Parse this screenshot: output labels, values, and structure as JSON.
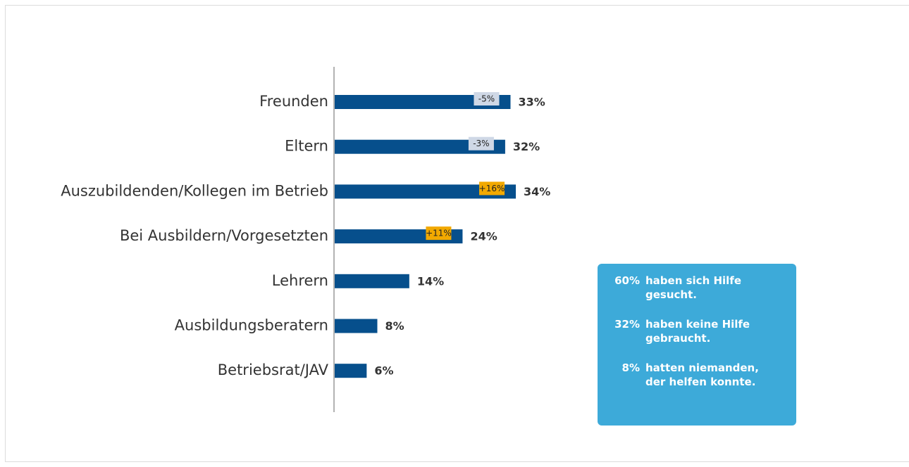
{
  "chart_data": {
    "type": "hbar",
    "categories": [
      "Freunden",
      "Eltern",
      "Auszubildenden/Kollegen im Betrieb",
      "Bei Ausbildern/Vorgesetzten",
      "Lehrern",
      "Ausbildungsberatern",
      "Betriebsrat/JAV"
    ],
    "values": [
      33,
      32,
      34,
      24,
      14,
      8,
      6
    ],
    "value_labels": [
      "33%",
      "32%",
      "34%",
      "24%",
      "14%",
      "8%",
      "6%"
    ],
    "color": "#064f8c",
    "xlim": [
      0,
      100
    ],
    "changes": [
      -5,
      -3,
      16,
      11,
      null,
      null,
      null
    ],
    "change_labels": [
      "-5%",
      "-3%",
      "+16%",
      "+11%",
      null,
      null,
      null
    ],
    "change_colors": {
      "negative": "#cfd8e6",
      "positive": "#f2a900"
    },
    "summary": [
      {
        "value": 60,
        "label": "60%",
        "text": "haben sich Hilfe gesucht."
      },
      {
        "value": 32,
        "label": "32%",
        "text": "haben keine Hilfe gebraucht."
      },
      {
        "value": 8,
        "label": "8%",
        "text": "hatten niemanden, der helfen konnte."
      }
    ],
    "summary_color": "#3daad9"
  }
}
